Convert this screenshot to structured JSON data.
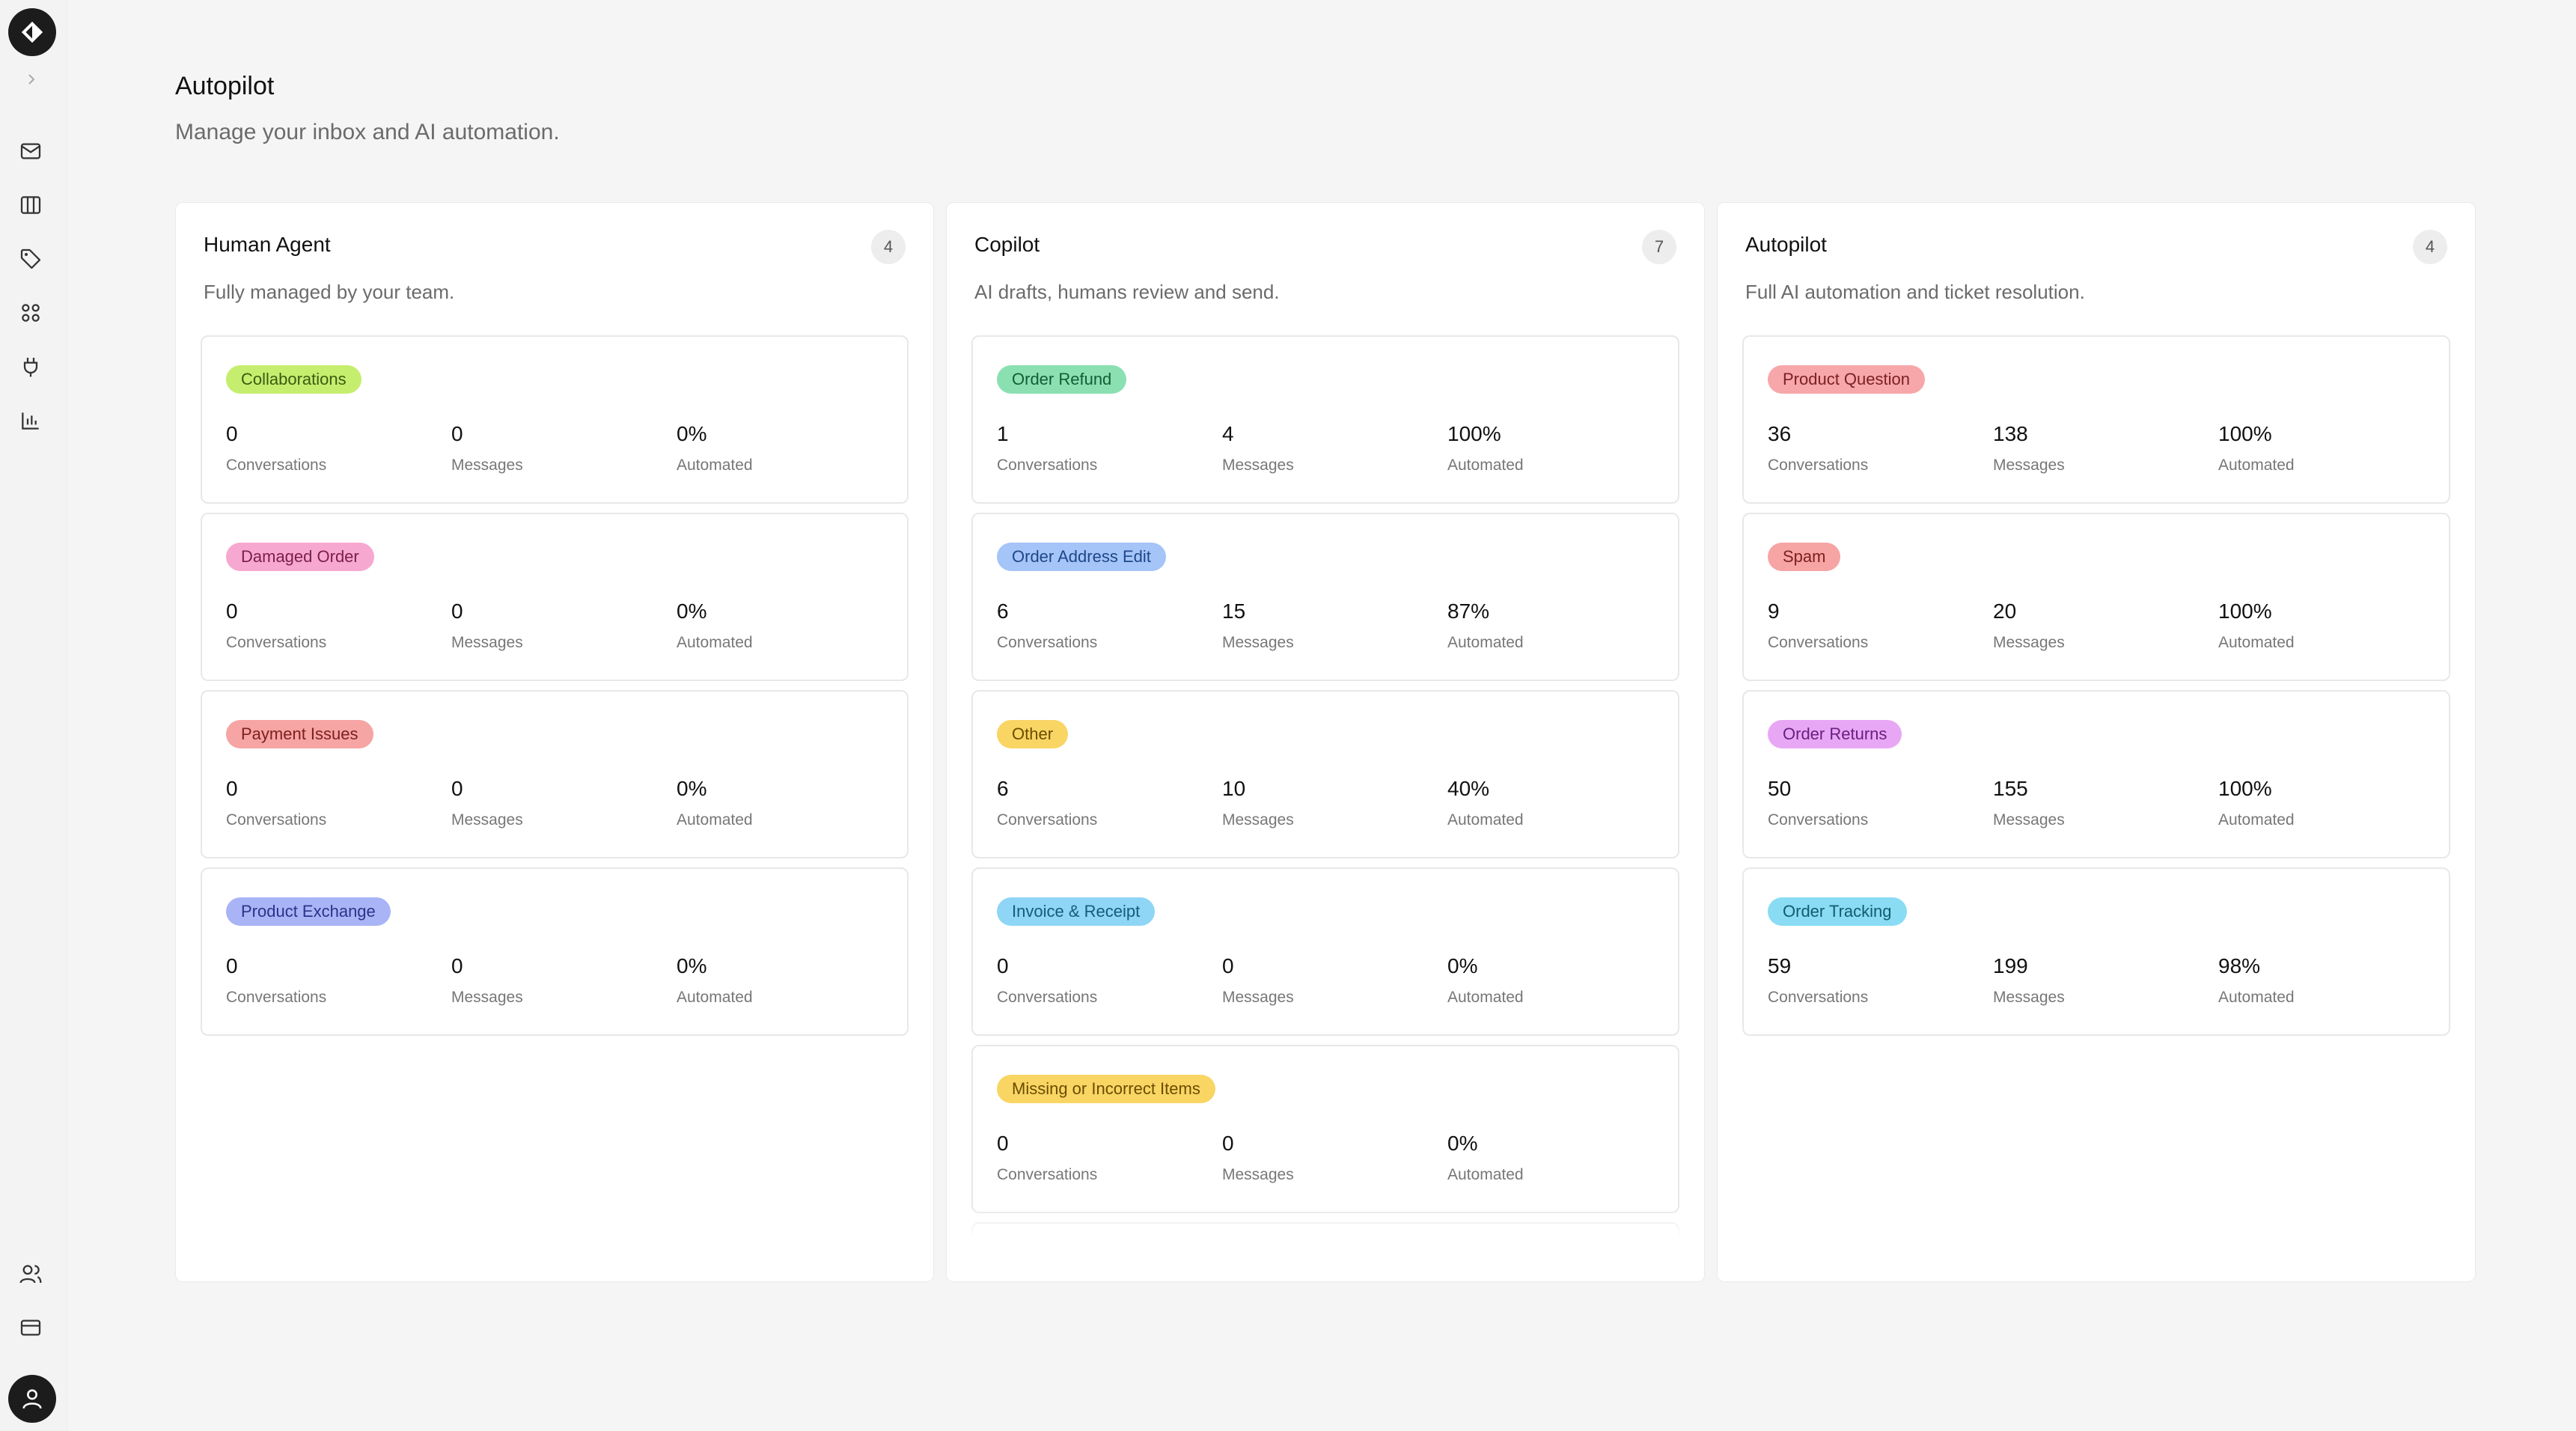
{
  "page": {
    "title": "Autopilot",
    "subtitle": "Manage your inbox and AI automation."
  },
  "sidebar": {
    "icons": [
      "logo-icon",
      "chevron-right-icon",
      "mail-icon",
      "columns-icon",
      "tag-icon",
      "apps-icon",
      "plug-icon",
      "chart-icon",
      "users-icon",
      "credit-card-icon",
      "user-icon"
    ]
  },
  "stat_labels": {
    "conversations": "Conversations",
    "messages": "Messages",
    "automated": "Automated"
  },
  "columns": [
    {
      "title": "Human Agent",
      "count": "4",
      "description": "Fully managed by your team.",
      "cards": [
        {
          "tag": "Collaborations",
          "conversations": "0",
          "messages": "0",
          "automated": "0%",
          "color": "#c6ee6e",
          "text_color": "#3b5a12"
        },
        {
          "tag": "Damaged Order",
          "conversations": "0",
          "messages": "0",
          "automated": "0%",
          "color": "#f7a8d0",
          "text_color": "#7a1e4b"
        },
        {
          "tag": "Payment Issues",
          "conversations": "0",
          "messages": "0",
          "automated": "0%",
          "color": "#f6a4a4",
          "text_color": "#7d2020"
        },
        {
          "tag": "Product Exchange",
          "conversations": "0",
          "messages": "0",
          "automated": "0%",
          "color": "#a9b4f7",
          "text_color": "#2a3488"
        }
      ]
    },
    {
      "title": "Copilot",
      "count": "7",
      "description": "AI drafts, humans review and send.",
      "cards": [
        {
          "tag": "Order Refund",
          "conversations": "1",
          "messages": "4",
          "automated": "100%",
          "color": "#8be0b2",
          "text_color": "#145c35"
        },
        {
          "tag": "Order Address Edit",
          "conversations": "6",
          "messages": "15",
          "automated": "87%",
          "color": "#a5c4f7",
          "text_color": "#1e4789"
        },
        {
          "tag": "Other",
          "conversations": "6",
          "messages": "10",
          "automated": "40%",
          "color": "#f9d564",
          "text_color": "#6b4d00"
        },
        {
          "tag": "Invoice & Receipt",
          "conversations": "0",
          "messages": "0",
          "automated": "0%",
          "color": "#8fd5f5",
          "text_color": "#145a7d"
        },
        {
          "tag": "Missing or Incorrect Items",
          "conversations": "0",
          "messages": "0",
          "automated": "0%",
          "color": "#f9d564",
          "text_color": "#6b4d00"
        }
      ]
    },
    {
      "title": "Autopilot",
      "count": "4",
      "description": "Full AI automation and ticket resolution.",
      "cards": [
        {
          "tag": "Product Question",
          "conversations": "36",
          "messages": "138",
          "automated": "100%",
          "color": "#f7a7a9",
          "text_color": "#7d2024"
        },
        {
          "tag": "Spam",
          "conversations": "9",
          "messages": "20",
          "automated": "100%",
          "color": "#f6a4a4",
          "text_color": "#7d2020"
        },
        {
          "tag": "Order Returns",
          "conversations": "50",
          "messages": "155",
          "automated": "100%",
          "color": "#e8a7f5",
          "text_color": "#6a1f80"
        },
        {
          "tag": "Order Tracking",
          "conversations": "59",
          "messages": "199",
          "automated": "98%",
          "color": "#89dcf3",
          "text_color": "#135a70"
        }
      ]
    }
  ]
}
